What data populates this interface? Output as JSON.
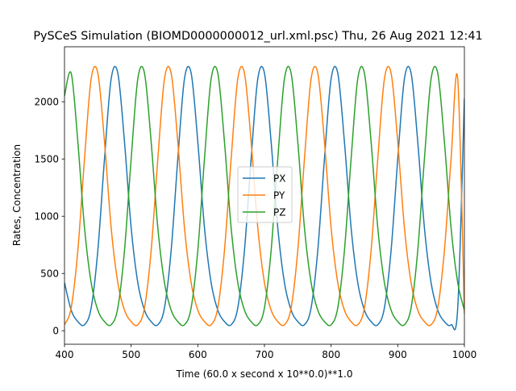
{
  "chart_data": {
    "type": "line",
    "title": "PySCeS Simulation (BIOMD0000000012_url.xml.psc) Thu, 26 Aug 2021 12:41",
    "xlabel": "Time (60.0 x second x 10**0.0)**1.0",
    "ylabel": "Rates, Concentration",
    "xlim": [
      400,
      1000
    ],
    "ylim": [
      -118,
      2480
    ],
    "xticks": [
      "400",
      "500",
      "600",
      "700",
      "800",
      "900",
      "1000"
    ],
    "yticks": [
      "0",
      "500",
      "1000",
      "1500",
      "2000"
    ],
    "grid": false,
    "legend": {
      "placement": "center",
      "entries": [
        "PX",
        "PY",
        "PZ"
      ]
    },
    "series": [
      {
        "name": "PX",
        "color": "#1f77b4",
        "x": [
          400,
          410,
          420,
          430,
          440,
          450,
          460,
          470,
          480,
          490,
          500,
          510,
          520,
          530,
          540,
          550,
          560,
          570,
          580,
          590,
          600,
          610,
          620,
          630,
          640,
          650,
          660,
          670,
          680,
          690,
          700,
          710,
          720,
          730,
          740,
          750,
          760,
          770,
          780,
          790,
          800,
          810,
          820,
          830,
          840,
          850,
          860,
          870,
          880,
          890,
          900,
          910,
          920,
          930,
          940,
          950,
          960,
          970,
          980,
          990,
          1000
        ],
        "values": [
          420,
          180,
          80,
          52,
          200,
          700,
          1500,
          2200,
          2250,
          1650,
          900,
          420,
          180,
          80,
          52,
          200,
          700,
          1500,
          2200,
          2250,
          1650,
          900,
          420,
          180,
          80,
          52,
          200,
          700,
          1500,
          2200,
          2250,
          1650,
          900,
          420,
          180,
          80,
          52,
          200,
          700,
          1500,
          2200,
          2250,
          1650,
          900,
          420,
          180,
          80,
          52,
          200,
          700,
          1500,
          2200,
          2250,
          1650,
          900,
          420,
          180,
          80,
          52,
          200,
          2030
        ]
      },
      {
        "name": "PY",
        "color": "#ff7f0e",
        "x": [
          400,
          410,
          420,
          430,
          440,
          450,
          460,
          470,
          480,
          490,
          500,
          510,
          520,
          530,
          540,
          550,
          560,
          570,
          580,
          590,
          600,
          610,
          620,
          630,
          640,
          650,
          660,
          670,
          680,
          690,
          700,
          710,
          720,
          730,
          740,
          750,
          760,
          770,
          780,
          790,
          800,
          810,
          820,
          830,
          840,
          850,
          860,
          870,
          880,
          890,
          900,
          910,
          920,
          930,
          940,
          950,
          960,
          970,
          980,
          990,
          1000
        ],
        "values": [
          52,
          200,
          700,
          1500,
          2200,
          2250,
          1650,
          900,
          420,
          180,
          80,
          52,
          200,
          700,
          1500,
          2200,
          2250,
          1650,
          900,
          420,
          180,
          80,
          52,
          200,
          700,
          1500,
          2200,
          2250,
          1650,
          900,
          420,
          180,
          80,
          52,
          200,
          700,
          1500,
          2200,
          2250,
          1650,
          900,
          420,
          180,
          80,
          52,
          200,
          700,
          1500,
          2200,
          2250,
          1650,
          900,
          420,
          180,
          80,
          52,
          200,
          700,
          1500,
          2200,
          150
        ]
      },
      {
        "name": "PZ",
        "color": "#2ca02c",
        "x": [
          400,
          410,
          420,
          430,
          440,
          450,
          460,
          470,
          480,
          490,
          500,
          510,
          520,
          530,
          540,
          550,
          560,
          570,
          580,
          590,
          600,
          610,
          620,
          630,
          640,
          650,
          660,
          670,
          680,
          690,
          700,
          710,
          720,
          730,
          740,
          750,
          760,
          770,
          780,
          790,
          800,
          810,
          820,
          830,
          840,
          850,
          860,
          870,
          880,
          890,
          900,
          910,
          920,
          930,
          940,
          950,
          960,
          970,
          980,
          990,
          1000
        ],
        "values": [
          2050,
          2250,
          1650,
          900,
          420,
          180,
          80,
          52,
          200,
          700,
          1500,
          2200,
          2250,
          1650,
          900,
          420,
          180,
          80,
          52,
          200,
          700,
          1500,
          2200,
          2250,
          1650,
          900,
          420,
          180,
          80,
          52,
          200,
          700,
          1500,
          2200,
          2250,
          1650,
          900,
          420,
          180,
          80,
          52,
          200,
          700,
          1500,
          2200,
          2250,
          1650,
          900,
          420,
          180,
          80,
          52,
          200,
          700,
          1500,
          2200,
          2250,
          1650,
          900,
          420,
          180
        ]
      }
    ]
  }
}
